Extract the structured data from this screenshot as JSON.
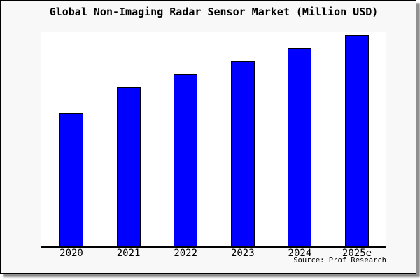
{
  "header": {
    "title": "Global Non-Imaging Radar Sensor Market (Million USD)"
  },
  "footer": {
    "source": "Source: Prof Research"
  },
  "chart_data": {
    "type": "bar",
    "title": "Global Non-Imaging Radar Sensor Market (Million USD)",
    "categories": [
      "2020",
      "2021",
      "2022",
      "2023",
      "2024",
      "2025e"
    ],
    "values": [
      62.9,
      75.2,
      81.5,
      87.7,
      93.7,
      100
    ],
    "xlabel": "",
    "ylabel": "",
    "ylim": [
      0,
      100
    ],
    "y_axis_labeled": false,
    "value_note": "No y-axis scale or data labels shown in image; values are relative bar heights normalized to 2025e = 100",
    "grid": false,
    "legend": "none",
    "bar_fill": "#0000ff",
    "bar_border": "#000000"
  },
  "colors": {
    "bar_fill": "#0000ff",
    "bar_border": "#000000",
    "plot_background": "#ffffff",
    "canvas_background": "#f8f8f8",
    "frame_border": "#000000",
    "axis_line": "#000000",
    "text": "#000000",
    "shadow": "#8f8f8f"
  }
}
